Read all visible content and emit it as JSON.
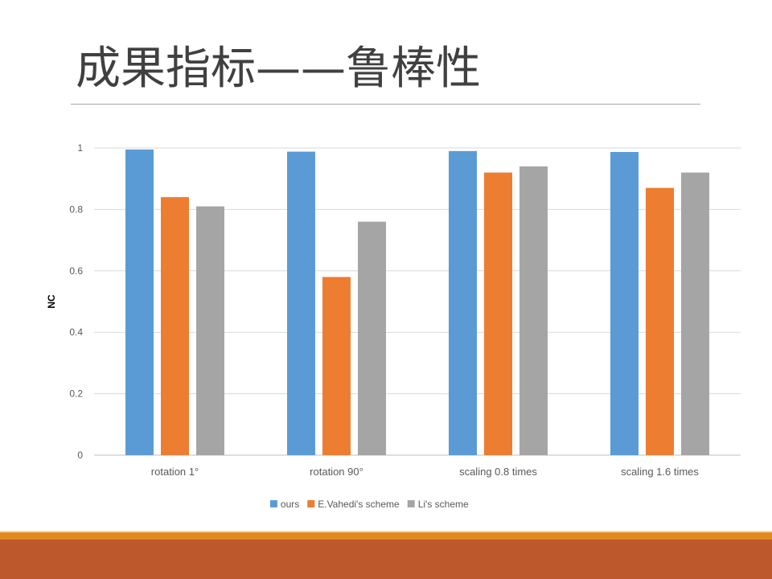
{
  "slide": {
    "title": "成果指标——鲁棒性"
  },
  "colors": {
    "title_text": "#404040",
    "footer_accent": "#e08a1e",
    "footer_main": "#bd582c",
    "series_ours": "#5b9bd5",
    "series_vahedi": "#ed7d31",
    "series_li": "#a5a5a5",
    "gridline": "#d9d9d9",
    "tick_text": "#595959"
  },
  "chart_data": {
    "type": "bar",
    "categories": [
      "rotation 1°",
      "rotation 90°",
      "scaling 0.8 times",
      "scaling 1.6 times"
    ],
    "series": [
      {
        "name": "ours",
        "color": "#5b9bd5",
        "values": [
          0.995,
          0.988,
          0.99,
          0.987
        ]
      },
      {
        "name": "E.Vahedi's scheme",
        "color": "#ed7d31",
        "values": [
          0.84,
          0.58,
          0.92,
          0.87
        ]
      },
      {
        "name": "Li's scheme",
        "color": "#a5a5a5",
        "values": [
          0.81,
          0.76,
          0.94,
          0.92
        ]
      }
    ],
    "ylabel": "NC",
    "xlabel": "",
    "ylim": [
      0,
      1
    ],
    "yticks": [
      {
        "value": 0,
        "label": "0"
      },
      {
        "value": 0.2,
        "label": "0.2"
      },
      {
        "value": 0.4,
        "label": "0.4"
      },
      {
        "value": 0.6,
        "label": "0.6"
      },
      {
        "value": 0.8,
        "label": "0.8"
      },
      {
        "value": 1,
        "label": "1"
      }
    ],
    "grid": true,
    "legend_position": "bottom"
  }
}
